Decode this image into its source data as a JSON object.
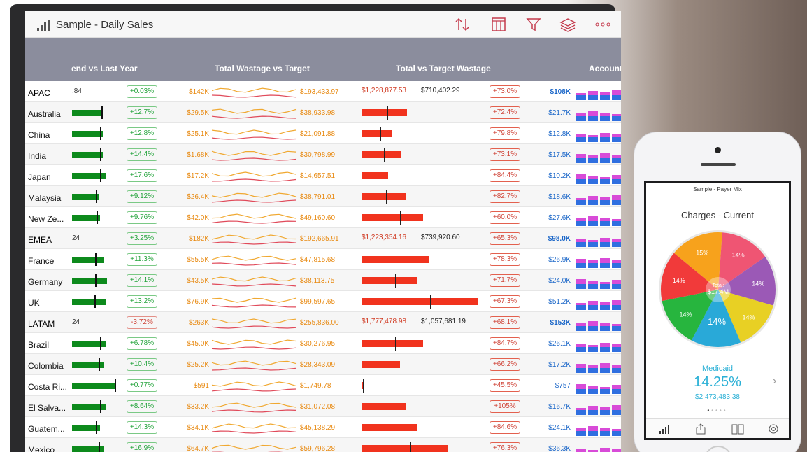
{
  "app": {
    "title": "Sample - Daily Sales"
  },
  "toolbar": {
    "icons": [
      "sort-icon",
      "columns-icon",
      "filter-icon",
      "layers-icon",
      "more-icon"
    ]
  },
  "headers": {
    "trend": "end vs Last Year",
    "wastage": "Total Wastage vs Target",
    "target_wastage": "Total vs Target Wastage",
    "account": "Account"
  },
  "rows": [
    {
      "name": "APAC",
      "region": true,
      "prefix": ".84",
      "pct": "+0.03%",
      "pct_neg": false,
      "w1": "$142K",
      "w2": "$193,433.97",
      "t1": "$1,228,877.53",
      "t2": "$710,402.29",
      "pct2": "+73.0%",
      "acct": "$108K"
    },
    {
      "name": "Australia",
      "region": false,
      "bar": 0.55,
      "mark": 0.52,
      "pct": "+12.7%",
      "pct_neg": false,
      "w1": "$29.5K",
      "w2": "$38,933.98",
      "tbar": 0.39,
      "tmark": 0.22,
      "pct2": "+72.4%",
      "acct": "$21.7K"
    },
    {
      "name": "China",
      "region": false,
      "bar": 0.55,
      "mark": 0.5,
      "pct": "+12.8%",
      "pct_neg": false,
      "w1": "$25.1K",
      "w2": "$21,091.88",
      "tbar": 0.26,
      "tmark": 0.16,
      "pct2": "+79.8%",
      "acct": "$12.8K"
    },
    {
      "name": "India",
      "region": false,
      "bar": 0.55,
      "mark": 0.5,
      "pct": "+14.4%",
      "pct_neg": false,
      "w1": "$1.68K",
      "w2": "$30,798.99",
      "tbar": 0.34,
      "tmark": 0.19,
      "pct2": "+73.1%",
      "acct": "$17.5K"
    },
    {
      "name": "Japan",
      "region": false,
      "bar": 0.6,
      "mark": 0.5,
      "pct": "+17.6%",
      "pct_neg": false,
      "w1": "$17.2K",
      "w2": "$14,657.51",
      "tbar": 0.23,
      "tmark": 0.12,
      "pct2": "+84.4%",
      "acct": "$10.2K"
    },
    {
      "name": "Malaysia",
      "region": false,
      "bar": 0.48,
      "mark": 0.42,
      "pct": "+9.12%",
      "pct_neg": false,
      "w1": "$26.4K",
      "w2": "$38,791.01",
      "tbar": 0.38,
      "tmark": 0.21,
      "pct2": "+82.7%",
      "acct": "$18.6K"
    },
    {
      "name": "New Ze...",
      "region": false,
      "bar": 0.5,
      "mark": 0.44,
      "pct": "+9.76%",
      "pct_neg": false,
      "w1": "$42.0K",
      "w2": "$49,160.60",
      "tbar": 0.53,
      "tmark": 0.33,
      "pct2": "+60.0%",
      "acct": "$27.6K"
    },
    {
      "name": "EMEA",
      "region": true,
      "prefix": "24",
      "pct": "+3.25%",
      "pct_neg": false,
      "w1": "$182K",
      "w2": "$192,665.91",
      "t1": "$1,223,354.16",
      "t2": "$739,920.60",
      "pct2": "+65.3%",
      "acct": "$98.0K"
    },
    {
      "name": "France",
      "region": false,
      "bar": 0.58,
      "mark": 0.41,
      "pct": "+11.3%",
      "pct_neg": false,
      "w1": "$55.5K",
      "w2": "$47,815.68",
      "tbar": 0.58,
      "tmark": 0.3,
      "pct2": "+78.3%",
      "acct": "$26.9K"
    },
    {
      "name": "Germany",
      "region": false,
      "bar": 0.63,
      "mark": 0.41,
      "pct": "+14.1%",
      "pct_neg": false,
      "w1": "$43.5K",
      "w2": "$38,113.75",
      "tbar": 0.48,
      "tmark": 0.29,
      "pct2": "+71.7%",
      "acct": "$24.0K"
    },
    {
      "name": "UK",
      "region": false,
      "bar": 0.6,
      "mark": 0.4,
      "pct": "+13.2%",
      "pct_neg": false,
      "w1": "$76.9K",
      "w2": "$99,597.65",
      "tbar": 1.0,
      "tmark": 0.59,
      "pct2": "+67.3%",
      "acct": "$51.2K"
    },
    {
      "name": "LATAM",
      "region": true,
      "prefix": "24",
      "pct": "-3.72%",
      "pct_neg": true,
      "w1": "$263K",
      "w2": "$255,836.00",
      "t1": "$1,777,478.98",
      "t2": "$1,057,681.19",
      "pct2": "+68.1%",
      "acct": "$153K"
    },
    {
      "name": "Brazil",
      "region": false,
      "bar": 0.6,
      "mark": 0.5,
      "pct": "+6.78%",
      "pct_neg": false,
      "w1": "$45.0K",
      "w2": "$30,276.95",
      "tbar": 0.53,
      "tmark": 0.29,
      "pct2": "+84.7%",
      "acct": "$26.1K"
    },
    {
      "name": "Colombia",
      "region": false,
      "bar": 0.58,
      "mark": 0.48,
      "pct": "+10.4%",
      "pct_neg": false,
      "w1": "$25.2K",
      "w2": "$28,343.09",
      "tbar": 0.33,
      "tmark": 0.2,
      "pct2": "+66.2%",
      "acct": "$17.2K"
    },
    {
      "name": "Costa Ri...",
      "region": false,
      "bar": 0.78,
      "mark": 0.76,
      "pct": "+0.77%",
      "pct_neg": false,
      "w1": "$591",
      "w2": "$1,749.78",
      "tbar": 0.02,
      "tmark": 0.01,
      "pct2": "+45.5%",
      "acct": "$757"
    },
    {
      "name": "El Salva...",
      "region": false,
      "bar": 0.6,
      "mark": 0.5,
      "pct": "+8.64%",
      "pct_neg": false,
      "w1": "$33.2K",
      "w2": "$31,072.08",
      "tbar": 0.38,
      "tmark": 0.18,
      "pct2": "+105%",
      "acct": "$16.7K"
    },
    {
      "name": "Guatem...",
      "region": false,
      "bar": 0.5,
      "mark": 0.42,
      "pct": "+14.3%",
      "pct_neg": false,
      "w1": "$34.1K",
      "w2": "$45,138.29",
      "tbar": 0.48,
      "tmark": 0.26,
      "pct2": "+84.6%",
      "acct": "$24.1K"
    },
    {
      "name": "Mexico",
      "region": false,
      "bar": 0.58,
      "mark": 0.48,
      "pct": "+16.9%",
      "pct_neg": false,
      "w1": "$64.7K",
      "w2": "$59,796.28",
      "tbar": 0.74,
      "tmark": 0.42,
      "pct2": "+76.3%",
      "acct": "$36.3K"
    }
  ],
  "phone": {
    "title": "Sample - Payer Mix",
    "heading": "Charges - Current",
    "pie_center_label": "Total:",
    "pie_center_value": "$17.4M",
    "selected_label": "Medicaid",
    "selected_value": "14.25%",
    "selected_sub": "$2,473,483.38",
    "chart_data": {
      "type": "pie",
      "values": [
        15,
        14,
        14,
        14,
        14,
        14,
        14
      ],
      "labels": [
        "15%",
        "14%",
        "14%",
        "14%",
        "14%",
        "14%",
        "14%"
      ],
      "colors": [
        "#f7a21c",
        "#ef5573",
        "#9b59b6",
        "#e8d024",
        "#29a9d8",
        "#27b53e",
        "#f13a3a"
      ]
    }
  }
}
